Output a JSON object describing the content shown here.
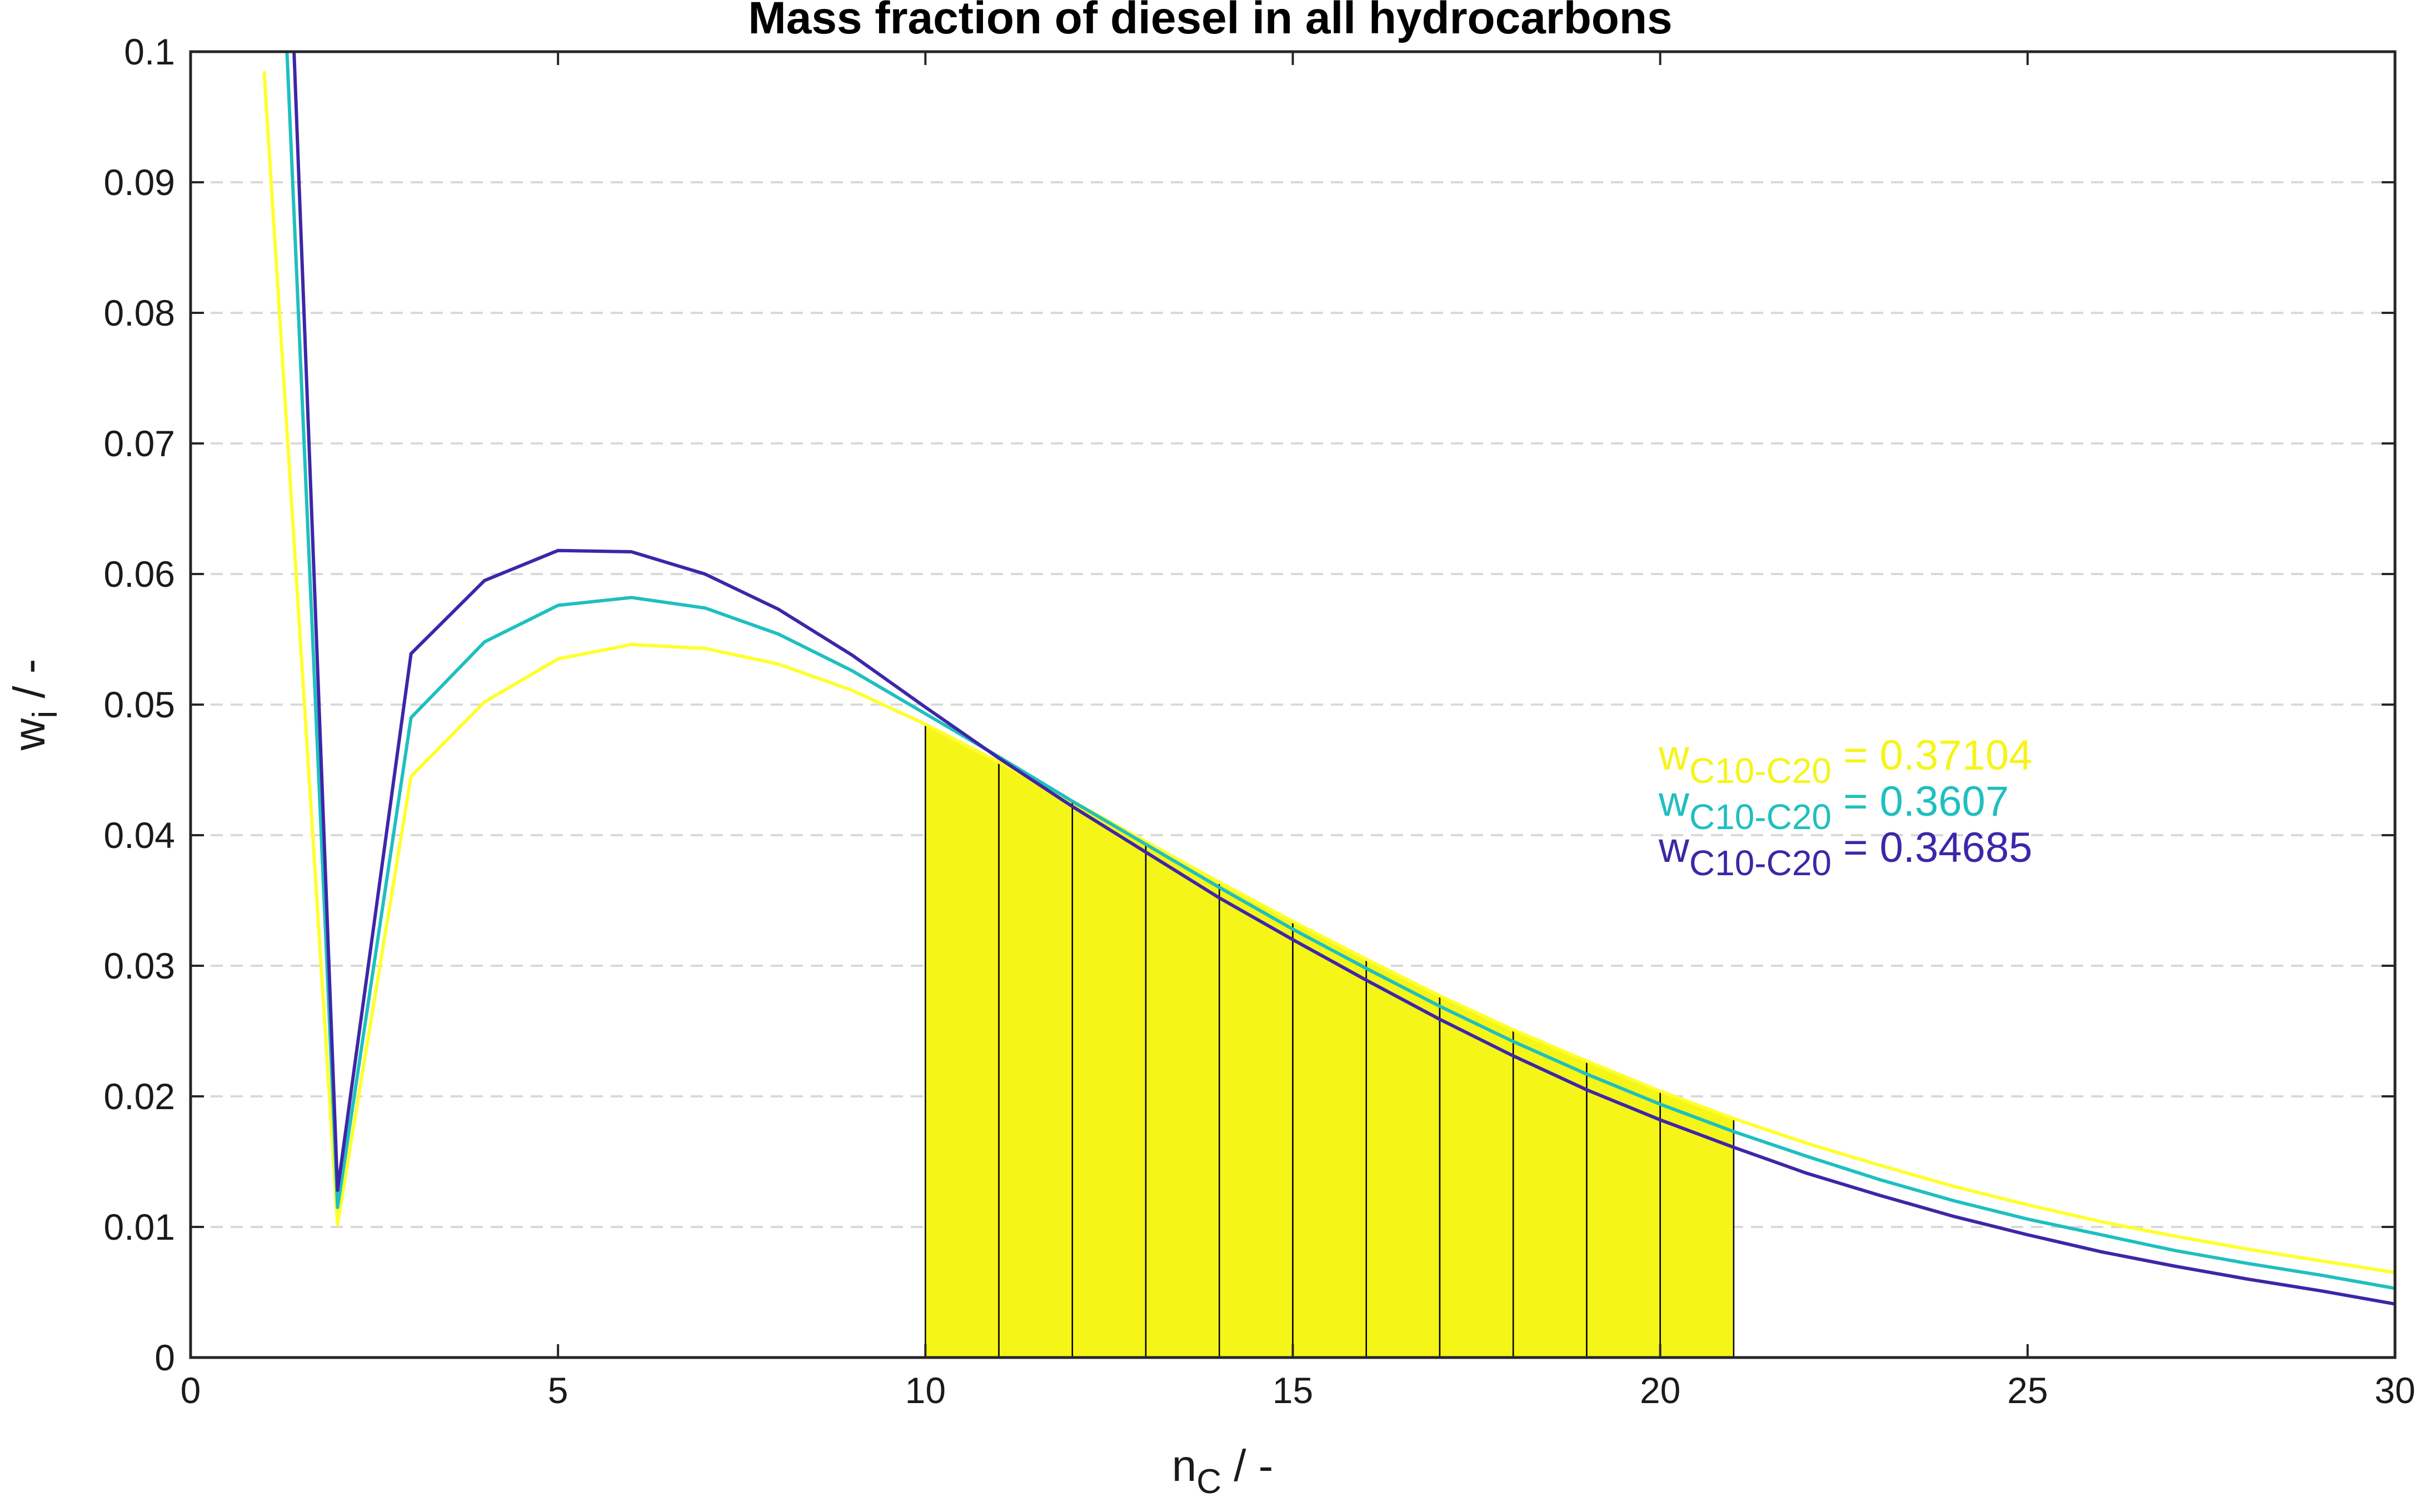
{
  "chart_data": {
    "type": "line",
    "title": "Mass fraction of diesel in all hydrocarbons",
    "xlabel": {
      "main": "n",
      "sub": "C",
      "suffix": " / -"
    },
    "ylabel": {
      "main": "w",
      "sub": "i",
      "suffix": " / -"
    },
    "xlim": [
      0,
      30
    ],
    "ylim": [
      0,
      0.1
    ],
    "x_ticks": [
      0,
      5,
      10,
      15,
      20,
      25,
      30
    ],
    "y_ticks": [
      0,
      0.01,
      0.02,
      0.03,
      0.04,
      0.05,
      0.06,
      0.07,
      0.08,
      0.09,
      0.1
    ],
    "x_tick_labels": [
      "0",
      "5",
      "10",
      "15",
      "20",
      "25",
      "30"
    ],
    "y_tick_labels": [
      "0",
      "0.01",
      "0.02",
      "0.03",
      "0.04",
      "0.05",
      "0.06",
      "0.07",
      "0.08",
      "0.09",
      "0.1"
    ],
    "grid": "horizontal dashed",
    "shaded_range": {
      "from": 10,
      "to": 21,
      "color": "#f5f518"
    },
    "series": [
      {
        "color": "#ffff2e",
        "x": [
          1,
          2,
          3,
          4,
          5,
          6,
          7,
          8,
          9,
          10,
          11,
          12,
          13,
          14,
          15,
          16,
          17,
          18,
          19,
          20,
          21,
          22,
          23,
          24,
          25,
          26,
          27,
          28,
          29,
          30
        ],
        "y": [
          0.0985,
          0.0102,
          0.0445,
          0.0502,
          0.0535,
          0.0546,
          0.0543,
          0.0531,
          0.0511,
          0.0485,
          0.0456,
          0.0426,
          0.0395,
          0.0364,
          0.0334,
          0.0305,
          0.0277,
          0.0251,
          0.0227,
          0.0204,
          0.0183,
          0.0164,
          0.0147,
          0.0131,
          0.0117,
          0.0104,
          0.0093,
          0.0083,
          0.0074,
          0.0065
        ]
      },
      {
        "color": "#1fbfbf",
        "x": [
          1,
          2,
          3,
          4,
          5,
          6,
          7,
          8,
          9,
          10,
          11,
          12,
          13,
          14,
          15,
          16,
          17,
          18,
          19,
          20,
          21,
          22,
          23,
          24,
          25,
          26,
          27,
          28,
          29,
          30
        ],
        "y": [
          0.14,
          0.0115,
          0.049,
          0.0548,
          0.0576,
          0.0582,
          0.0574,
          0.0554,
          0.0526,
          0.0493,
          0.046,
          0.0426,
          0.0393,
          0.036,
          0.0328,
          0.0298,
          0.0269,
          0.0242,
          0.0217,
          0.0194,
          0.0173,
          0.0154,
          0.0136,
          0.012,
          0.0106,
          0.0094,
          0.0082,
          0.0072,
          0.0063,
          0.0053
        ]
      },
      {
        "color": "#3e26a8",
        "x": [
          1,
          2,
          3,
          4,
          5,
          6,
          7,
          8,
          9,
          10,
          11,
          12,
          13,
          14,
          15,
          16,
          17,
          18,
          19,
          20,
          21,
          22,
          23,
          24,
          25,
          26,
          27,
          28,
          29,
          30
        ],
        "y": [
          0.16,
          0.0128,
          0.0539,
          0.0595,
          0.0618,
          0.0617,
          0.06,
          0.0573,
          0.0538,
          0.0498,
          0.0459,
          0.0422,
          0.0387,
          0.0352,
          0.032,
          0.0289,
          0.0259,
          0.0231,
          0.0205,
          0.0182,
          0.0161,
          0.0141,
          0.0124,
          0.0108,
          0.0094,
          0.0081,
          0.007,
          0.006,
          0.0051,
          0.0041
        ]
      }
    ],
    "annotations": [
      {
        "prefix": "w",
        "sub": "C10-C20",
        "value": " = 0.37104",
        "color": "#f5f518"
      },
      {
        "prefix": "w",
        "sub": "C10-C20",
        "value": " = 0.3607",
        "color": "#1fbfbf"
      },
      {
        "prefix": "w",
        "sub": "C10-C20",
        "value": " = 0.34685",
        "color": "#3e26a8"
      }
    ]
  }
}
